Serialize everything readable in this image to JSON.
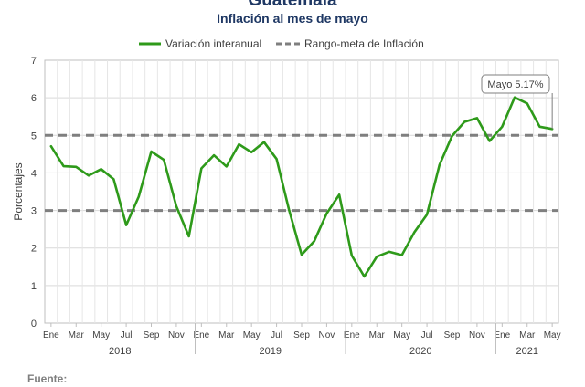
{
  "header": {
    "title": "Guatemala",
    "subtitle": "Inflación al mes de mayo"
  },
  "footer": {
    "source_label": "Fuente:"
  },
  "chart_data": {
    "type": "line",
    "ylabel": "Porcentajes",
    "ylim": [
      0,
      7
    ],
    "yticks": [
      0,
      1,
      2,
      3,
      4,
      5,
      6,
      7
    ],
    "grid": true,
    "legend_position": "top",
    "month_labels": [
      "Ene",
      "Mar",
      "May",
      "Jul",
      "Sep",
      "Nov",
      "Ene",
      "Mar",
      "May",
      "Jul",
      "Sep",
      "Nov",
      "Ene",
      "Mar",
      "May",
      "Jul",
      "Sep",
      "Nov",
      "Ene",
      "Mar",
      "May"
    ],
    "year_labels": [
      "2018",
      "2019",
      "2020",
      "2021"
    ],
    "series": [
      {
        "name": "Variación interanual",
        "color": "#2e9a1a",
        "style": "solid",
        "values": [
          4.71,
          4.18,
          4.16,
          3.93,
          4.1,
          3.83,
          2.61,
          3.37,
          4.57,
          4.35,
          3.11,
          2.31,
          4.12,
          4.47,
          4.17,
          4.76,
          4.55,
          4.82,
          4.37,
          3.01,
          1.82,
          2.18,
          2.92,
          3.42,
          1.8,
          1.24,
          1.77,
          1.9,
          1.81,
          2.42,
          2.89,
          4.21,
          4.98,
          5.36,
          5.46,
          4.85,
          5.23,
          6.01,
          5.85,
          5.23,
          5.17
        ]
      },
      {
        "name": "Rango-meta de Inflación",
        "color": "#7f7f7f",
        "style": "dashed",
        "values": [
          5,
          3
        ]
      }
    ],
    "annotation": {
      "text": "Mayo 5.17%",
      "index": 40
    }
  }
}
